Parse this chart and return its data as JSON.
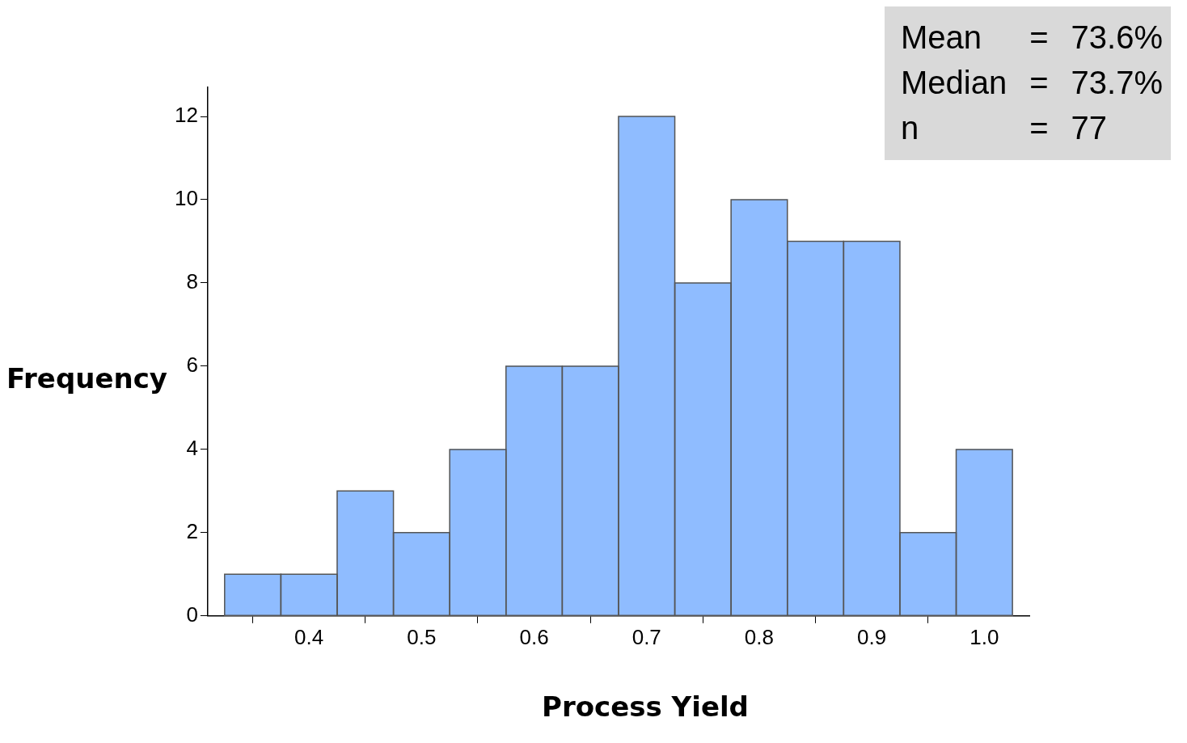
{
  "chart_data": {
    "type": "histogram",
    "xlabel": "Process Yield",
    "ylabel": "Frequency",
    "bins": [
      0.325,
      0.375,
      0.425,
      0.475,
      0.525,
      0.575,
      0.625,
      0.675,
      0.725,
      0.775,
      0.825,
      0.875,
      0.925,
      0.975,
      1.025
    ],
    "values": [
      1,
      1,
      3,
      2,
      4,
      6,
      6,
      12,
      8,
      10,
      9,
      9,
      2,
      4
    ],
    "color": "#8fbcff",
    "xlim": [
      0.31,
      1.04
    ],
    "xticks": [
      0.4,
      0.5,
      0.6,
      0.7,
      0.8,
      0.9,
      {
        "value": 1,
        "label": "1.0"
      }
    ],
    "ylim": [
      0,
      12.7
    ],
    "yticks": [
      0,
      2,
      4,
      6,
      8,
      10,
      12
    ],
    "grid": false,
    "legend": false,
    "annotations": [
      "Mean = 73.6%",
      "Median = 73.7%",
      "n = 77"
    ]
  }
}
